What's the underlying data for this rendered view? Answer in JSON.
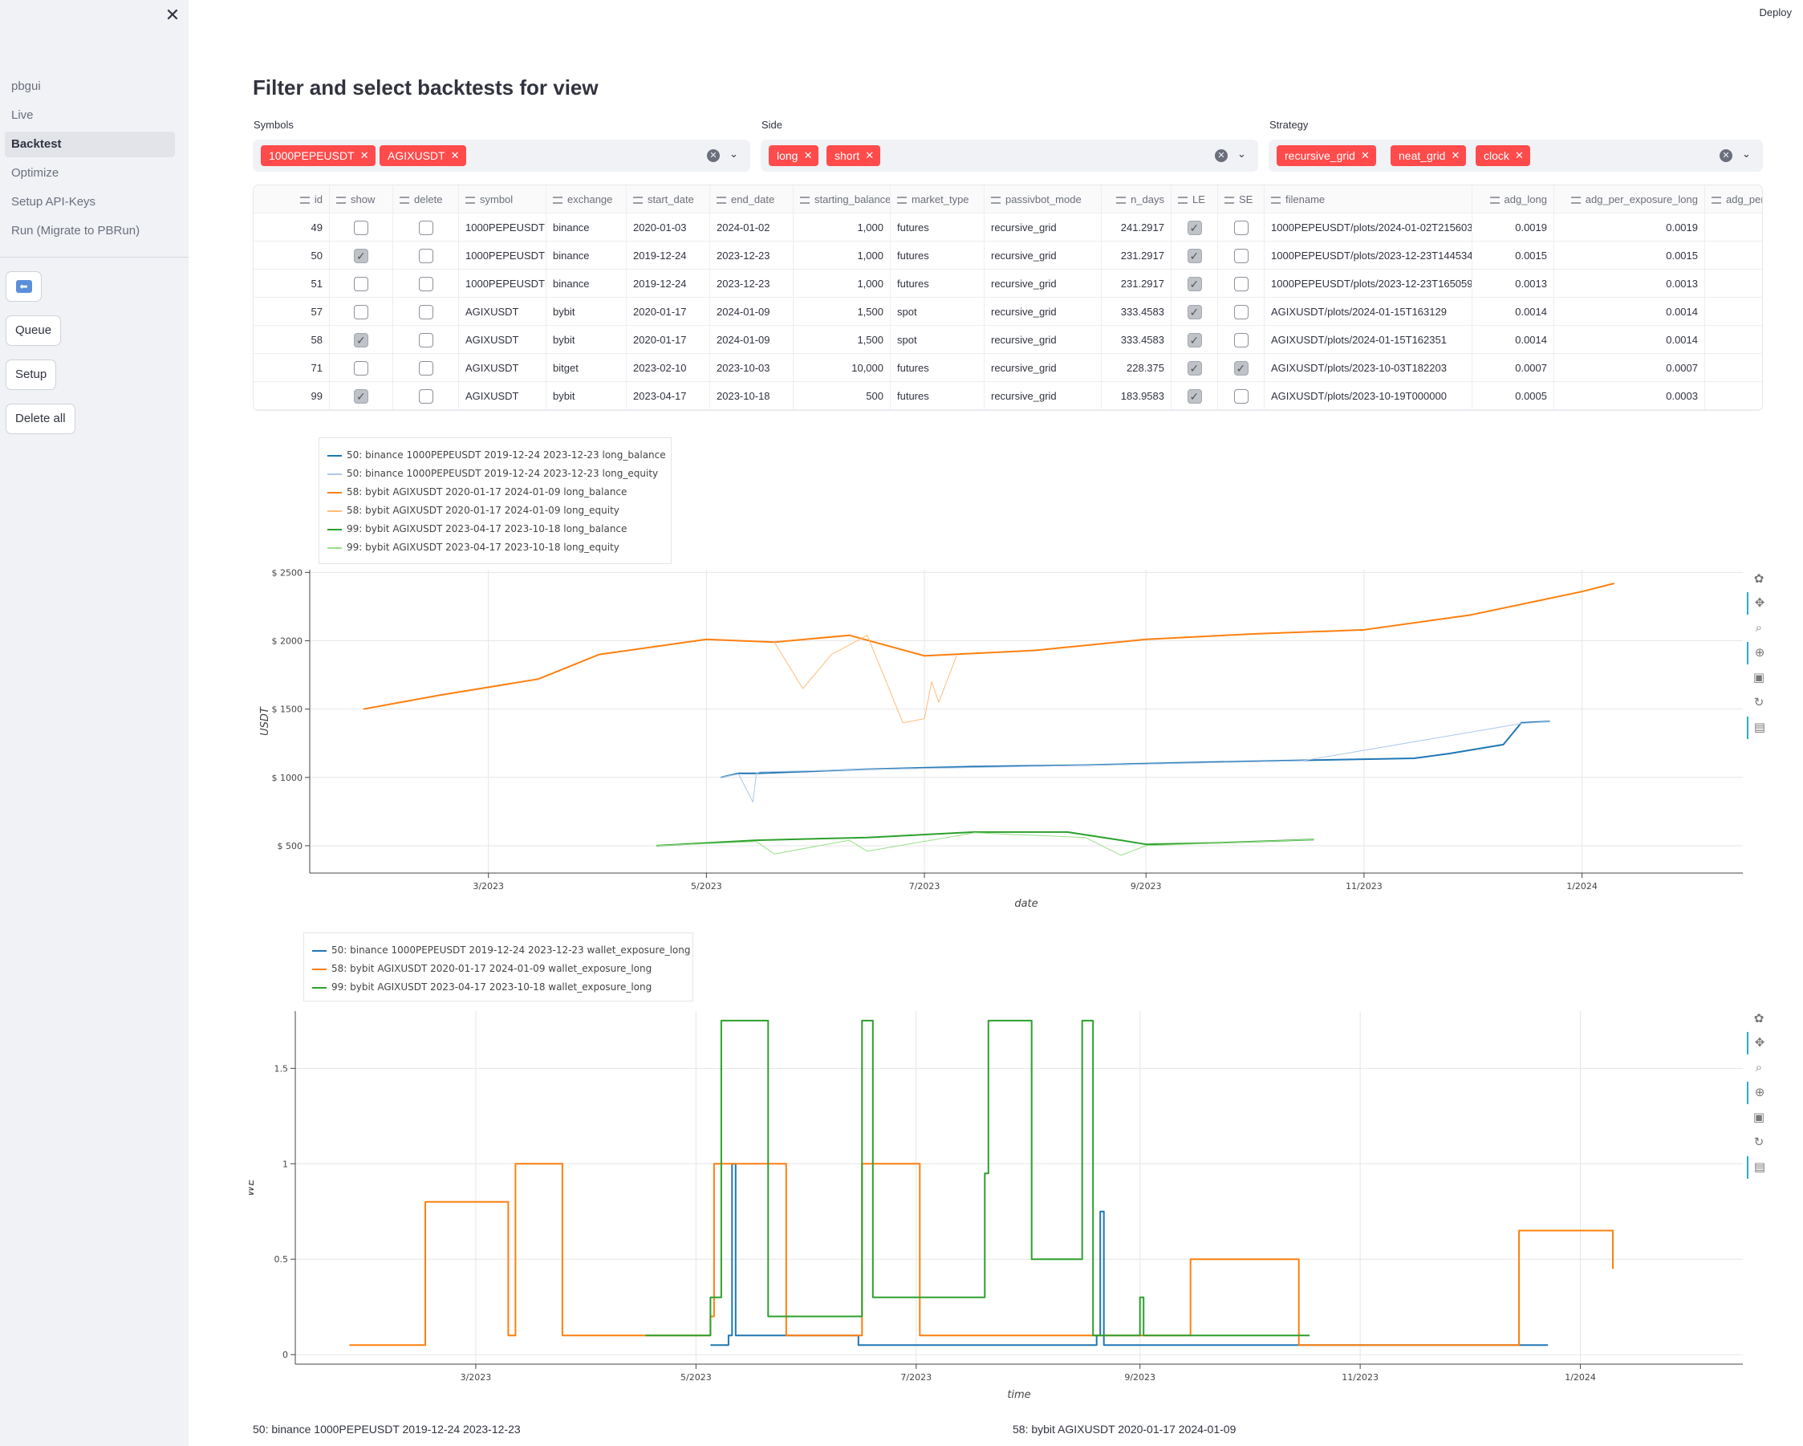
{
  "sidebar": {
    "nav": [
      "pbgui",
      "Live",
      "Backtest",
      "Optimize",
      "Setup API-Keys",
      "Run (Migrate to PBRun)"
    ],
    "active": "Backtest",
    "buttons": {
      "queue": "Queue",
      "setup": "Setup",
      "delete_all": "Delete all"
    }
  },
  "header": {
    "deploy": "Deploy"
  },
  "page": {
    "title": "Filter and select backtests for view"
  },
  "filters": {
    "symbols": {
      "label": "Symbols",
      "tags": [
        "1000PEPEUSDT",
        "AGIXUSDT"
      ]
    },
    "side": {
      "label": "Side",
      "tags": [
        "long",
        "short"
      ]
    },
    "strategy": {
      "label": "Strategy",
      "tags": [
        "recursive_grid",
        "neat_grid",
        "clock"
      ]
    }
  },
  "table": {
    "columns": [
      "id",
      "show",
      "delete",
      "symbol",
      "exchange",
      "start_date",
      "end_date",
      "starting_balance",
      "market_type",
      "passivbot_mode",
      "n_days",
      "LE",
      "SE",
      "filename",
      "adg_long",
      "adg_per_exposure_long",
      "adg_per_e"
    ],
    "rows": [
      {
        "id": "49",
        "show": false,
        "delete": false,
        "symbol": "1000PEPEUSDT",
        "exchange": "binance",
        "start_date": "2020-01-03",
        "end_date": "2024-01-02",
        "starting_balance": "1,000",
        "market_type": "futures",
        "passivbot_mode": "recursive_grid",
        "n_days": "241.2917",
        "LE": true,
        "SE": false,
        "filename": "1000PEPEUSDT/plots/2024-01-02T215603",
        "adg_long": "0.0019",
        "adg_per_exposure_long": "0.0019"
      },
      {
        "id": "50",
        "show": true,
        "delete": false,
        "symbol": "1000PEPEUSDT",
        "exchange": "binance",
        "start_date": "2019-12-24",
        "end_date": "2023-12-23",
        "starting_balance": "1,000",
        "market_type": "futures",
        "passivbot_mode": "recursive_grid",
        "n_days": "231.2917",
        "LE": true,
        "SE": false,
        "filename": "1000PEPEUSDT/plots/2023-12-23T144534",
        "adg_long": "0.0015",
        "adg_per_exposure_long": "0.0015"
      },
      {
        "id": "51",
        "show": false,
        "delete": false,
        "symbol": "1000PEPEUSDT",
        "exchange": "binance",
        "start_date": "2019-12-24",
        "end_date": "2023-12-23",
        "starting_balance": "1,000",
        "market_type": "futures",
        "passivbot_mode": "recursive_grid",
        "n_days": "231.2917",
        "LE": true,
        "SE": false,
        "filename": "1000PEPEUSDT/plots/2023-12-23T165059",
        "adg_long": "0.0013",
        "adg_per_exposure_long": "0.0013"
      },
      {
        "id": "57",
        "show": false,
        "delete": false,
        "symbol": "AGIXUSDT",
        "exchange": "bybit",
        "start_date": "2020-01-17",
        "end_date": "2024-01-09",
        "starting_balance": "1,500",
        "market_type": "spot",
        "passivbot_mode": "recursive_grid",
        "n_days": "333.4583",
        "LE": true,
        "SE": false,
        "filename": "AGIXUSDT/plots/2024-01-15T163129",
        "adg_long": "0.0014",
        "adg_per_exposure_long": "0.0014"
      },
      {
        "id": "58",
        "show": true,
        "delete": false,
        "symbol": "AGIXUSDT",
        "exchange": "bybit",
        "start_date": "2020-01-17",
        "end_date": "2024-01-09",
        "starting_balance": "1,500",
        "market_type": "spot",
        "passivbot_mode": "recursive_grid",
        "n_days": "333.4583",
        "LE": true,
        "SE": false,
        "filename": "AGIXUSDT/plots/2024-01-15T162351",
        "adg_long": "0.0014",
        "adg_per_exposure_long": "0.0014"
      },
      {
        "id": "71",
        "show": false,
        "delete": false,
        "symbol": "AGIXUSDT",
        "exchange": "bitget",
        "start_date": "2023-02-10",
        "end_date": "2023-10-03",
        "starting_balance": "10,000",
        "market_type": "futures",
        "passivbot_mode": "recursive_grid",
        "n_days": "228.375",
        "LE": true,
        "SE": true,
        "filename": "AGIXUSDT/plots/2023-10-03T182203",
        "adg_long": "0.0007",
        "adg_per_exposure_long": "0.0007"
      },
      {
        "id": "99",
        "show": true,
        "delete": false,
        "symbol": "AGIXUSDT",
        "exchange": "bybit",
        "start_date": "2023-04-17",
        "end_date": "2023-10-18",
        "starting_balance": "500",
        "market_type": "futures",
        "passivbot_mode": "recursive_grid",
        "n_days": "183.9583",
        "LE": true,
        "SE": false,
        "filename": "AGIXUSDT/plots/2023-10-19T000000",
        "adg_long": "0.0005",
        "adg_per_exposure_long": "0.0003"
      }
    ]
  },
  "chart_data": [
    {
      "type": "line",
      "title": "",
      "xlabel": "date",
      "ylabel": "USDT",
      "x_ticks": [
        "3/2023",
        "5/2023",
        "7/2023",
        "9/2023",
        "11/2023",
        "1/2024"
      ],
      "y_ticks": [
        "$ 500",
        "$ 1000",
        "$ 1500",
        "$ 2000",
        "$ 2500"
      ],
      "x_range": [
        "2023-01-10",
        "2024-02-15"
      ],
      "ylim": [
        300,
        2520
      ],
      "grid": true,
      "legend_position": "top-left",
      "series": [
        {
          "name": "50: binance 1000PEPEUSDT 2019-12-24 2023-12-23 long_balance",
          "color": "#1f77b4",
          "style": "solid",
          "x": [
            "2023-05-05",
            "2023-05-10",
            "2023-05-15",
            "2023-06-15",
            "2023-07-15",
            "2023-08-15",
            "2023-09-15",
            "2023-10-15",
            "2023-11-15",
            "2023-11-25",
            "2023-12-10",
            "2023-12-15",
            "2023-12-23"
          ],
          "y": [
            1000,
            1030,
            1030,
            1060,
            1080,
            1090,
            1110,
            1125,
            1140,
            1175,
            1240,
            1400,
            1410
          ]
        },
        {
          "name": "50: binance 1000PEPEUSDT 2019-12-24 2023-12-23 long_equity",
          "color": "#aec7e8",
          "style": "thin",
          "x": [
            "2023-05-05",
            "2023-05-10",
            "2023-05-14",
            "2023-05-15",
            "2023-05-16",
            "2023-06-15",
            "2023-08-15",
            "2023-10-15",
            "2023-12-15",
            "2023-12-23"
          ],
          "y": [
            1000,
            1025,
            820,
            1030,
            1040,
            1058,
            1088,
            1122,
            1395,
            1408
          ]
        },
        {
          "name": "58: bybit AGIXUSDT 2020-01-17 2024-01-09 long_balance",
          "color": "#ff7f0e",
          "style": "solid",
          "x": [
            "2023-01-25",
            "2023-02-15",
            "2023-03-15",
            "2023-04-01",
            "2023-05-01",
            "2023-05-20",
            "2023-06-10",
            "2023-07-01",
            "2023-08-01",
            "2023-09-01",
            "2023-10-01",
            "2023-11-01",
            "2023-12-01",
            "2024-01-01",
            "2024-01-10"
          ],
          "y": [
            1500,
            1600,
            1720,
            1900,
            2010,
            1990,
            2040,
            1890,
            1930,
            2010,
            2050,
            2080,
            2190,
            2360,
            2420
          ]
        },
        {
          "name": "58: bybit AGIXUSDT 2020-01-17 2024-01-09 long_equity",
          "color": "#ffbb78",
          "style": "thin",
          "x": [
            "2023-05-20",
            "2023-05-28",
            "2023-06-05",
            "2023-06-15",
            "2023-06-25",
            "2023-07-01",
            "2023-07-03",
            "2023-07-05",
            "2023-07-10"
          ],
          "y": [
            1990,
            1650,
            1900,
            2040,
            1400,
            1430,
            1700,
            1550,
            1890
          ]
        },
        {
          "name": "99: bybit AGIXUSDT 2023-04-17 2023-10-18 long_balance",
          "color": "#2ca02c",
          "style": "solid",
          "x": [
            "2023-04-17",
            "2023-05-15",
            "2023-06-15",
            "2023-07-15",
            "2023-08-10",
            "2023-08-25",
            "2023-09-01",
            "2023-09-20",
            "2023-10-18"
          ],
          "y": [
            500,
            540,
            560,
            600,
            600,
            540,
            510,
            520,
            545
          ]
        },
        {
          "name": "99: bybit AGIXUSDT 2023-04-17 2023-10-18 long_equity",
          "color": "#98df8a",
          "style": "thin",
          "x": [
            "2023-04-17",
            "2023-05-15",
            "2023-05-20",
            "2023-06-10",
            "2023-06-15",
            "2023-07-15",
            "2023-08-15",
            "2023-08-25",
            "2023-09-01",
            "2023-10-18"
          ],
          "y": [
            500,
            530,
            440,
            540,
            460,
            595,
            560,
            430,
            500,
            545
          ]
        }
      ]
    },
    {
      "type": "line",
      "title": "",
      "xlabel": "time",
      "ylabel": "WE",
      "x_ticks": [
        "3/2023",
        "5/2023",
        "7/2023",
        "9/2023",
        "11/2023",
        "1/2024"
      ],
      "y_ticks": [
        "0",
        "0.5",
        "1",
        "1.5"
      ],
      "x_range": [
        "2023-01-10",
        "2024-02-15"
      ],
      "ylim": [
        -0.05,
        1.8
      ],
      "grid": true,
      "legend_position": "top-left",
      "series": [
        {
          "name": "50: binance 1000PEPEUSDT 2019-12-24 2023-12-23 wallet_exposure_long",
          "color": "#1f77b4",
          "x": [
            "2023-05-05",
            "2023-05-10",
            "2023-05-11",
            "2023-05-12",
            "2023-06-15",
            "2023-08-20",
            "2023-08-21",
            "2023-08-22",
            "2023-12-23"
          ],
          "y": [
            0.05,
            0.1,
            1.0,
            0.1,
            0.05,
            0.1,
            0.75,
            0.05,
            0.05
          ]
        },
        {
          "name": "58: bybit AGIXUSDT 2020-01-17 2024-01-09 wallet_exposure_long",
          "color": "#ff7f0e",
          "x": [
            "2023-01-25",
            "2023-02-15",
            "2023-03-10",
            "2023-03-12",
            "2023-03-25",
            "2023-05-05",
            "2023-05-06",
            "2023-05-25",
            "2023-05-26",
            "2023-06-15",
            "2023-06-16",
            "2023-07-01",
            "2023-07-02",
            "2023-09-15",
            "2023-10-15",
            "2023-12-15",
            "2024-01-10"
          ],
          "y": [
            0.05,
            0.8,
            0.1,
            1.0,
            0.1,
            0.2,
            1.0,
            1.0,
            0.1,
            0.1,
            1.0,
            1.0,
            0.1,
            0.5,
            0.05,
            0.65,
            0.45
          ]
        },
        {
          "name": "99: bybit AGIXUSDT 2023-04-17 2023-10-18 wallet_exposure_long",
          "color": "#2ca02c",
          "x": [
            "2023-04-17",
            "2023-05-05",
            "2023-05-08",
            "2023-05-20",
            "2023-05-21",
            "2023-06-15",
            "2023-06-16",
            "2023-06-18",
            "2023-06-19",
            "2023-07-20",
            "2023-07-21",
            "2023-08-01",
            "2023-08-02",
            "2023-08-15",
            "2023-08-16",
            "2023-08-18",
            "2023-08-19",
            "2023-09-01",
            "2023-09-02",
            "2023-10-18"
          ],
          "y": [
            0.1,
            0.3,
            1.75,
            1.75,
            0.2,
            0.2,
            1.75,
            1.75,
            0.3,
            0.95,
            1.75,
            1.75,
            0.5,
            0.5,
            1.75,
            1.75,
            0.1,
            0.3,
            0.1,
            0.1
          ]
        }
      ]
    }
  ],
  "captions": {
    "left": "50: binance 1000PEPEUSDT 2019-12-24 2023-12-23",
    "right": "58: bybit AGIXUSDT 2020-01-17 2024-01-09"
  }
}
